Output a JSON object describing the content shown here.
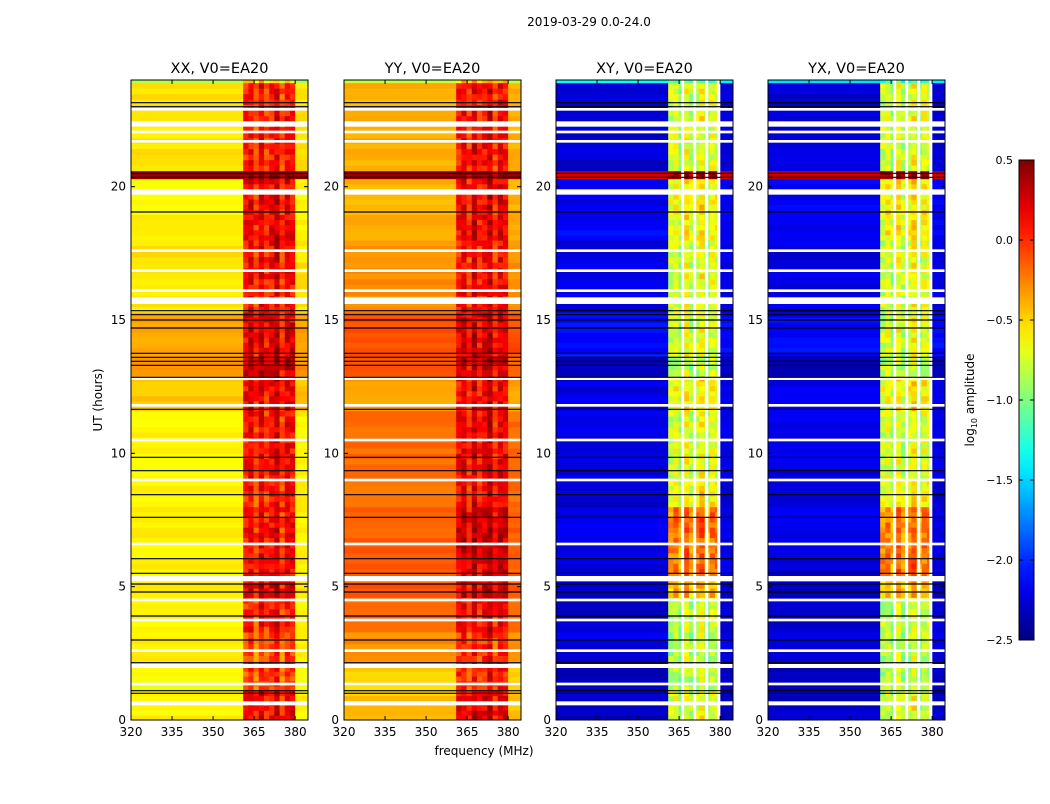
{
  "figure_title": "2019-03-29 0.0-24.0",
  "chart_data": {
    "type": "heatmap",
    "title": "2019-03-29 0.0-24.0",
    "xlabel": "frequency (MHz)",
    "ylabel": "UT (hours)",
    "xlim": [
      320,
      384.7
    ],
    "ylim": [
      0,
      24
    ],
    "xticks": [
      320,
      335,
      350,
      365,
      380
    ],
    "yticks": [
      0,
      5,
      10,
      15,
      20
    ],
    "colorbar": {
      "label_main": "log",
      "label_sub": "10",
      "label_rest": " amplitude",
      "range": [
        -2.5,
        0.5
      ],
      "ticks": [
        0.5,
        0.0,
        -0.5,
        -1.0,
        -1.5,
        -2.0,
        -2.5
      ],
      "tick_labels": [
        "0.5",
        "0.0",
        "−0.5",
        "−1.0",
        "−1.5",
        "−2.0",
        "−2.5"
      ],
      "colormap": "jet"
    },
    "time_edges": [
      0,
      1.1,
      2.2,
      3.3,
      4.6,
      5.3,
      8.0,
      9.0,
      11.6,
      12.9,
      13.6,
      15.3,
      18,
      20.3,
      20.6,
      23.9,
      24
    ],
    "rfi_band_MHz": [
      361,
      380
    ],
    "rfi_band_channel_offsets": [
      0,
      0.1,
      -0.1,
      0.15,
      -0.05,
      0.05,
      0.2,
      -0.1,
      0.1,
      0.05
    ],
    "flagged_hours": [
      [
        0.55,
        0.7
      ],
      [
        1.3,
        1.4
      ],
      [
        1.95,
        2.1
      ],
      [
        2.55,
        2.65
      ],
      [
        3.7,
        3.8
      ],
      [
        4.45,
        4.55
      ],
      [
        5.2,
        5.4
      ],
      [
        6.55,
        6.65
      ],
      [
        8.95,
        9.05
      ],
      [
        10.45,
        10.55
      ],
      [
        11.75,
        11.85
      ],
      [
        12.75,
        12.85
      ],
      [
        15.6,
        15.85
      ],
      [
        16.05,
        16.15
      ],
      [
        16.8,
        16.9
      ],
      [
        17.55,
        17.65
      ],
      [
        19.7,
        19.9
      ],
      [
        21.65,
        21.75
      ],
      [
        22.0,
        22.1
      ],
      [
        22.25,
        22.45
      ],
      [
        22.85,
        22.95
      ]
    ],
    "dropout_hours": [
      1.0,
      1.1,
      2.15,
      3.0,
      3.9,
      4.8,
      5.1,
      5.5,
      6.05,
      7.6,
      8.45,
      9.35,
      9.85,
      11.65,
      12.85,
      13.3,
      13.45,
      13.6,
      13.75,
      14.7,
      15.0,
      15.2,
      15.35,
      19.05,
      20.35,
      20.5,
      23.0,
      23.15
    ],
    "panels": [
      {
        "title": "XX, V0=EA20",
        "low": [
          -0.6,
          -0.65,
          -0.6,
          -0.6,
          -0.55,
          -0.6,
          -0.6,
          -0.6,
          -0.45,
          -0.3,
          -0.35,
          -0.55,
          -0.6,
          0.4,
          -0.55,
          -0.9
        ],
        "high": [
          0.1,
          -0.1,
          -0.15,
          0.0,
          0.15,
          0.05,
          0.0,
          0.05,
          0.1,
          0.2,
          0.15,
          0.05,
          0.1,
          0.45,
          0.0,
          -0.6
        ],
        "flagged_channels_MHz": []
      },
      {
        "title": "YY, V0=EA20",
        "low": [
          -0.45,
          -0.5,
          -0.3,
          -0.2,
          -0.15,
          -0.15,
          -0.2,
          -0.2,
          -0.35,
          -0.15,
          -0.1,
          -0.3,
          -0.4,
          0.4,
          -0.4,
          -0.8
        ],
        "high": [
          0.15,
          0.0,
          -0.05,
          0.1,
          0.2,
          0.2,
          0.1,
          0.1,
          0.1,
          0.2,
          0.15,
          0.05,
          0.1,
          0.45,
          0.05,
          -0.5
        ],
        "flagged_channels_MHz": []
      },
      {
        "title": "XY, V0=EA20",
        "low": [
          -2.3,
          -2.3,
          -2.2,
          -2.25,
          -2.3,
          -2.2,
          -2.25,
          -2.2,
          -2.2,
          -2.3,
          -2.1,
          -2.2,
          -2.15,
          0.3,
          -2.25,
          -1.4
        ],
        "high": [
          -0.8,
          -0.9,
          -0.9,
          -0.85,
          -0.5,
          -0.3,
          -0.7,
          -0.8,
          -0.7,
          -0.9,
          -0.8,
          -0.8,
          -0.7,
          0.4,
          -0.8,
          -1.2
        ],
        "flagged_channels_MHz": [
          366.3,
          370.7,
          375.1,
          379.5
        ]
      },
      {
        "title": "YX, V0=EA20",
        "low": [
          -2.3,
          -2.3,
          -2.2,
          -2.25,
          -2.3,
          -2.2,
          -2.25,
          -2.2,
          -2.2,
          -2.3,
          -2.1,
          -2.2,
          -2.15,
          0.3,
          -2.25,
          -1.4
        ],
        "high": [
          -0.8,
          -0.9,
          -0.9,
          -0.85,
          -0.5,
          -0.3,
          -0.7,
          -0.8,
          -0.7,
          -0.9,
          -0.8,
          -0.8,
          -0.7,
          0.4,
          -0.8,
          -1.2
        ],
        "flagged_channels_MHz": [
          366.3,
          370.7,
          375.1,
          379.5
        ]
      }
    ]
  }
}
